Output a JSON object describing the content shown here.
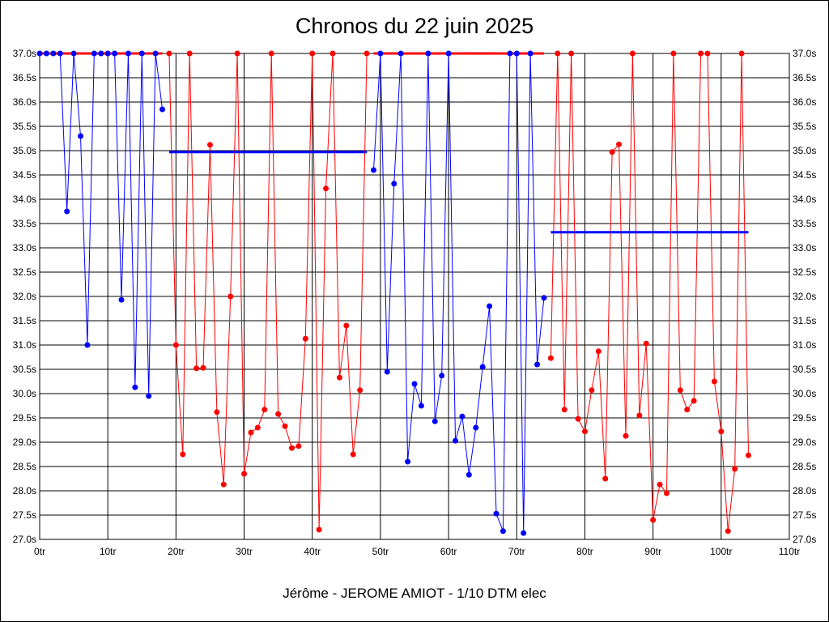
{
  "chart_data": {
    "type": "line",
    "title": "Chronos du 22 juin 2025",
    "xlabel": "Jérôme - JEROME AMIOT - 1/10 DTM elec",
    "ylabel": "",
    "xlim": [
      0,
      110
    ],
    "ylim": [
      27.0,
      37.0
    ],
    "x_ticks": [
      "0tr",
      "10tr",
      "20tr",
      "30tr",
      "40tr",
      "50tr",
      "60tr",
      "70tr",
      "80tr",
      "90tr",
      "100tr",
      "110tr"
    ],
    "y_ticks": [
      "27.0s",
      "27.5s",
      "28.0s",
      "28.5s",
      "29.0s",
      "29.5s",
      "30.0s",
      "30.5s",
      "31.0s",
      "31.5s",
      "32.0s",
      "32.5s",
      "33.0s",
      "33.5s",
      "34.0s",
      "34.5s",
      "35.0s",
      "35.5s",
      "36.0s",
      "36.5s",
      "37.0s"
    ],
    "grid": true,
    "series": [
      {
        "name": "run-1",
        "color": "#0000ff",
        "start_lap": 0,
        "ref_line": {
          "value": 37.0,
          "color": "#ff0000",
          "from": 0,
          "to": 18
        },
        "values": [
          37.0,
          37.0,
          37.0,
          37.0,
          33.75,
          37.0,
          35.3,
          31.0,
          37.0,
          37.0,
          37.0,
          37.0,
          31.93,
          37.0,
          30.13,
          37.0,
          29.95,
          37.0,
          35.85
        ]
      },
      {
        "name": "run-2",
        "color": "#ff0000",
        "start_lap": 19,
        "ref_line": {
          "value": 34.97,
          "color": "#0000ff",
          "from": 19,
          "to": 48
        },
        "values": [
          37.0,
          31.0,
          28.75,
          37.0,
          30.52,
          30.53,
          35.12,
          29.62,
          28.13,
          32.0,
          37.0,
          28.35,
          29.2,
          29.3,
          29.67,
          37.0,
          29.58,
          29.33,
          28.88,
          28.92,
          31.13,
          37.0,
          27.2,
          34.22,
          37.0,
          30.33,
          31.4,
          28.75,
          30.07,
          37.0
        ]
      },
      {
        "name": "run-3",
        "color": "#0000ff",
        "start_lap": 49,
        "ref_line": {
          "value": 37.0,
          "color": "#ff0000",
          "from": 49,
          "to": 74
        },
        "values": [
          34.6,
          37.0,
          30.45,
          34.32,
          37.0,
          28.6,
          30.2,
          29.75,
          37.0,
          29.43,
          30.37,
          37.0,
          29.03,
          29.53,
          28.33,
          29.3,
          30.55,
          31.8,
          27.53,
          27.17,
          37.0,
          37.0,
          27.13,
          37.0,
          30.6,
          31.97
        ]
      },
      {
        "name": "run-4",
        "color": "#ff0000",
        "start_lap": 75,
        "ref_line": {
          "value": 33.32,
          "color": "#0000ff",
          "from": 75,
          "to": 104
        },
        "values": [
          30.73,
          37.0,
          29.67,
          37.0,
          29.48,
          29.22,
          30.07,
          30.87,
          28.25,
          34.97,
          35.13,
          29.13,
          37.0,
          29.55,
          31.03,
          27.4,
          28.13,
          27.95,
          37.0,
          30.07,
          29.67,
          29.85,
          37.0,
          37.0,
          30.25,
          29.22,
          27.17,
          28.45,
          37.0,
          28.73
        ]
      }
    ]
  }
}
